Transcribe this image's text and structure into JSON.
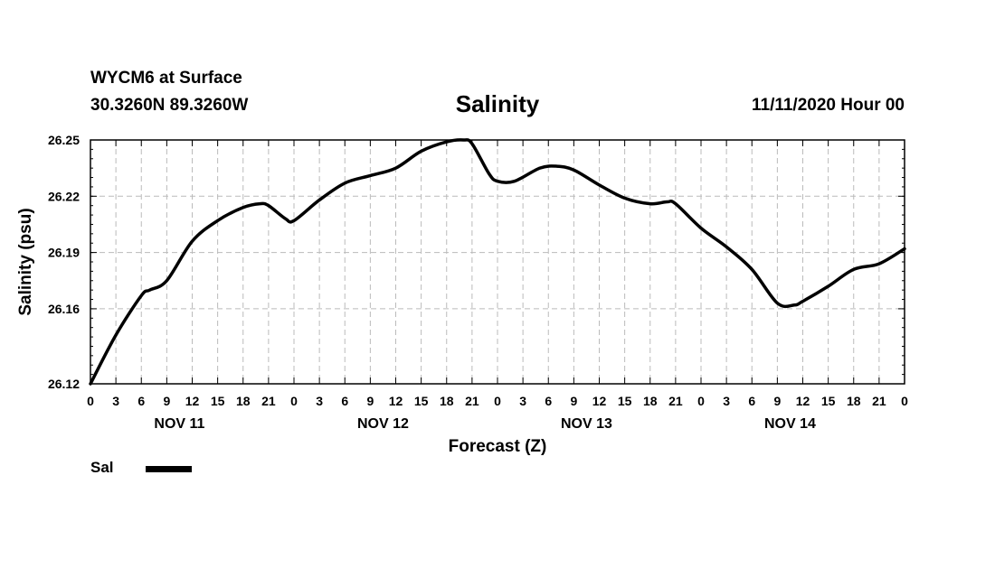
{
  "header": {
    "station": "WYCM6 at Surface",
    "coords": "30.3260N 89.3260W",
    "runtime": "11/11/2020 Hour 00"
  },
  "chart_data": {
    "type": "line",
    "title": "Salinity",
    "xlabel": "Forecast (Z)",
    "ylabel": "Salinity (psu)",
    "ylim": [
      26.12,
      26.25
    ],
    "yticks": [
      "26.25",
      "26.22",
      "26.19",
      "26.16",
      "26.12"
    ],
    "xlim": [
      0,
      96
    ],
    "xtick_step_hours": 3,
    "xtick_labels": [
      "0",
      "3",
      "6",
      "9",
      "12",
      "15",
      "18",
      "21",
      "0",
      "3",
      "6",
      "9",
      "12",
      "15",
      "18",
      "21",
      "0",
      "3",
      "6",
      "9",
      "12",
      "15",
      "18",
      "21",
      "0",
      "3",
      "6",
      "9",
      "12",
      "15",
      "18",
      "21",
      "0"
    ],
    "day_labels": [
      "NOV 11",
      "NOV 12",
      "NOV 13",
      "NOV 14"
    ],
    "grid": true,
    "legend_position": "bottom-left",
    "series": [
      {
        "name": "Sal",
        "color": "#000000",
        "x": [
          0,
          3,
          6,
          7,
          9,
          12,
          15,
          18,
          20,
          21,
          23,
          24,
          27,
          30,
          33,
          36,
          39,
          42,
          44,
          45,
          47,
          48,
          50,
          53,
          55,
          57,
          60,
          63,
          66,
          68,
          69,
          72,
          75,
          78,
          81,
          83,
          84,
          87,
          90,
          93,
          96
        ],
        "y": [
          26.12,
          26.146,
          26.167,
          26.17,
          26.175,
          26.196,
          26.207,
          26.214,
          26.216,
          26.215,
          26.208,
          26.207,
          26.218,
          26.227,
          26.231,
          26.235,
          26.244,
          26.249,
          26.25,
          26.248,
          26.232,
          26.228,
          26.228,
          26.235,
          26.236,
          26.234,
          26.226,
          26.219,
          26.216,
          26.217,
          26.216,
          26.203,
          26.193,
          26.181,
          26.163,
          26.162,
          26.164,
          26.172,
          26.181,
          26.184,
          26.192
        ]
      }
    ]
  }
}
